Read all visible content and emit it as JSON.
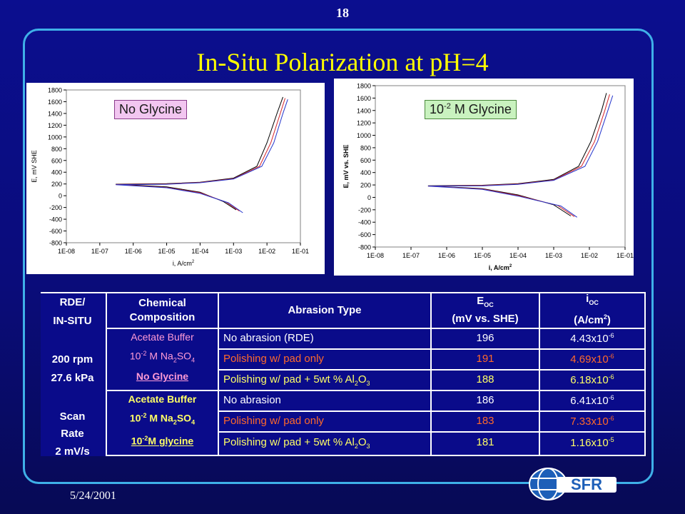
{
  "slide": {
    "page_number": "18",
    "title": "In-Situ Polarization at pH=4",
    "date": "5/24/2001"
  },
  "colors": {
    "background": "#0b0e8f",
    "frame": "#3fb0e8",
    "title": "#ffff00",
    "pink_text": "#ff9bd6",
    "yellow_text": "#ffff66",
    "orange_text": "#ff6a2a",
    "white_text": "#ffffff"
  },
  "chart_data": [
    {
      "type": "line",
      "label_box": "No Glycine",
      "xlabel": "i, A/cm",
      "xlabel_sup": "2",
      "ylabel": "E, mV SHE",
      "xscale": "log",
      "xlim": [
        1e-08,
        0.1
      ],
      "ylim": [
        -800,
        1800
      ],
      "x_ticks": [
        "1E-08",
        "1E-07",
        "1E-06",
        "1E-05",
        "1E-04",
        "1E-03",
        "1E-02",
        "1E-01"
      ],
      "y_ticks": [
        "1800",
        "1600",
        "1400",
        "1200",
        "1000",
        "800",
        "600",
        "400",
        "200",
        "0",
        "-200",
        "-400",
        "-600",
        "-800"
      ],
      "series": [
        {
          "color": "#000000",
          "anodic": [
            [
              3e-07,
              196
            ],
            [
              1e-05,
              205
            ],
            [
              0.0001,
              230
            ],
            [
              0.001,
              300
            ],
            [
              0.005,
              500
            ],
            [
              0.01,
              900
            ],
            [
              0.02,
              1400
            ],
            [
              0.03,
              1680
            ]
          ],
          "cathodic": [
            [
              3e-07,
              196
            ],
            [
              1e-05,
              150
            ],
            [
              0.0001,
              60
            ],
            [
              0.0005,
              -100
            ],
            [
              0.0012,
              -240
            ]
          ]
        },
        {
          "color": "#d4242a",
          "anodic": [
            [
              3e-07,
              191
            ],
            [
              1e-05,
              200
            ],
            [
              0.0001,
              225
            ],
            [
              0.001,
              290
            ],
            [
              0.006,
              500
            ],
            [
              0.013,
              900
            ],
            [
              0.025,
              1400
            ],
            [
              0.035,
              1660
            ]
          ],
          "cathodic": [
            [
              3e-07,
              191
            ],
            [
              1e-05,
              140
            ],
            [
              0.0001,
              50
            ],
            [
              0.0006,
              -110
            ],
            [
              0.0015,
              -260
            ]
          ]
        },
        {
          "color": "#2233cc",
          "anodic": [
            [
              3e-07,
              188
            ],
            [
              1e-05,
              195
            ],
            [
              0.0001,
              220
            ],
            [
              0.001,
              285
            ],
            [
              0.007,
              500
            ],
            [
              0.016,
              900
            ],
            [
              0.03,
              1400
            ],
            [
              0.042,
              1640
            ]
          ],
          "cathodic": [
            [
              3e-07,
              188
            ],
            [
              1e-05,
              135
            ],
            [
              0.0001,
              40
            ],
            [
              0.0007,
              -120
            ],
            [
              0.0019,
              -290
            ]
          ]
        }
      ]
    },
    {
      "type": "line",
      "label_box": "10",
      "label_box_sup": "-2",
      "label_box_rest": " M Glycine",
      "xlabel": "i, A/cm",
      "xlabel_sup": "2",
      "ylabel": "E, mV vs. SHE",
      "xscale": "log",
      "xlim": [
        1e-08,
        0.1
      ],
      "ylim": [
        -800,
        1800
      ],
      "x_ticks": [
        "1E-08",
        "1E-07",
        "1E-06",
        "1E-05",
        "1E-04",
        "1E-03",
        "1E-02",
        "1E-01"
      ],
      "y_ticks": [
        "1800",
        "1600",
        "1400",
        "1200",
        "1000",
        "800",
        "600",
        "400",
        "200",
        "0",
        "-200",
        "-400",
        "-600",
        "-800"
      ],
      "series": [
        {
          "color": "#000000",
          "anodic": [
            [
              3e-07,
              186
            ],
            [
              1e-05,
              195
            ],
            [
              0.0001,
              220
            ],
            [
              0.001,
              290
            ],
            [
              0.005,
              500
            ],
            [
              0.011,
              900
            ],
            [
              0.022,
              1400
            ],
            [
              0.03,
              1680
            ]
          ],
          "cathodic": [
            [
              3e-07,
              186
            ],
            [
              1e-05,
              140
            ],
            [
              0.0001,
              40
            ],
            [
              0.001,
              -120
            ],
            [
              0.003,
              -300
            ]
          ]
        },
        {
          "color": "#d4242a",
          "anodic": [
            [
              3e-07,
              183
            ],
            [
              1e-05,
              190
            ],
            [
              0.0001,
              215
            ],
            [
              0.001,
              280
            ],
            [
              0.006,
              500
            ],
            [
              0.014,
              900
            ],
            [
              0.027,
              1400
            ],
            [
              0.037,
              1660
            ]
          ],
          "cathodic": [
            [
              3e-07,
              183
            ],
            [
              1e-05,
              135
            ],
            [
              0.0001,
              30
            ],
            [
              0.0013,
              -130
            ],
            [
              0.0038,
              -310
            ]
          ]
        },
        {
          "color": "#2233cc",
          "anodic": [
            [
              3e-07,
              181
            ],
            [
              1e-05,
              185
            ],
            [
              0.0001,
              210
            ],
            [
              0.001,
              275
            ],
            [
              0.0075,
              500
            ],
            [
              0.017,
              900
            ],
            [
              0.033,
              1400
            ],
            [
              0.045,
              1640
            ]
          ],
          "cathodic": [
            [
              3e-07,
              181
            ],
            [
              1e-05,
              130
            ],
            [
              0.0001,
              20
            ],
            [
              0.0016,
              -140
            ],
            [
              0.0045,
              -320
            ]
          ]
        }
      ]
    }
  ],
  "table": {
    "header": {
      "col1_line1": "RDE/",
      "col1_line2": "IN-SITU",
      "col2_line1": "Chemical",
      "col2_line2": "Composition",
      "col3": "Abrasion Type",
      "col4_main": "E",
      "col4_sub": "OC",
      "col4_line2": "(mV vs. SHE)",
      "col5_main": "i",
      "col5_sub": "OC",
      "col5_line2_a": "(A/cm",
      "col5_line2_sup": "2",
      "col5_line2_b": ")"
    },
    "conditions": [
      "200 rpm",
      "27.6 kPa",
      "Scan",
      "Rate",
      "2 mV/s"
    ],
    "group1": {
      "line1": "Acetate Buffer",
      "line2_a": "10",
      "line2_sup": "-2",
      "line2_b": " M Na",
      "line2_sub1": "2",
      "line2_c": "SO",
      "line2_sub2": "4",
      "line3": "No Glycine"
    },
    "group2": {
      "line1": "Acetate Buffer",
      "line2_a": "10",
      "line2_sup": "-2",
      "line2_b": " M Na",
      "line2_sub1": "2",
      "line2_c": "SO",
      "line2_sub2": "4",
      "line3_a": "10",
      "line3_sup": "-2",
      "line3_b": "M glycine"
    },
    "rows": [
      {
        "abrasion": "No abrasion (RDE)",
        "abrasion_sub": "",
        "abrasion_tail": "",
        "e_oc": "196",
        "i_base": "4.43x10",
        "i_exp": "-6",
        "color": "#ffffff"
      },
      {
        "abrasion": "Polishing w/ pad only",
        "abrasion_sub": "",
        "abrasion_tail": "",
        "e_oc": "191",
        "i_base": "4.69x10",
        "i_exp": "-6",
        "color": "#ff6a2a"
      },
      {
        "abrasion": "Polishing w/ pad + 5wt % Al",
        "abrasion_sub": "2",
        "abrasion_tail": "O",
        "abrasion_sub2": "3",
        "e_oc": "188",
        "i_base": "6.18x10",
        "i_exp": "-6",
        "color": "#ffff66"
      },
      {
        "abrasion": "No abrasion",
        "abrasion_sub": "",
        "abrasion_tail": "",
        "e_oc": "186",
        "i_base": "6.41x10",
        "i_exp": "-6",
        "color": "#ffffff"
      },
      {
        "abrasion": "Polishing w/ pad only",
        "abrasion_sub": "",
        "abrasion_tail": "",
        "e_oc": "183",
        "i_base": "7.33x10",
        "i_exp": "-6",
        "color": "#ff6a2a"
      },
      {
        "abrasion": "Polishing w/ pad + 5wt % Al",
        "abrasion_sub": "2",
        "abrasion_tail": "O",
        "abrasion_sub2": "3",
        "e_oc": "181",
        "i_base": "1.16x10",
        "i_exp": "-5",
        "color": "#ffff66"
      }
    ]
  },
  "logo": {
    "text": "SFR",
    "icon": "sfr-globe-logo"
  }
}
